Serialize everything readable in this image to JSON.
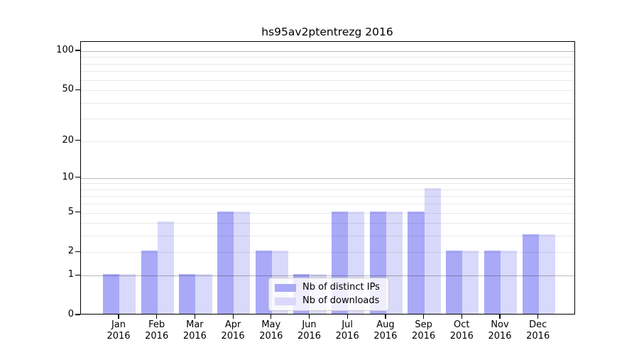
{
  "chart_data": {
    "type": "bar",
    "title": "hs95av2ptentrezg 2016",
    "categories": [
      "Jan 2016",
      "Feb 2016",
      "Mar 2016",
      "Apr 2016",
      "May 2016",
      "Jun 2016",
      "Jul 2016",
      "Aug 2016",
      "Sep 2016",
      "Oct 2016",
      "Nov 2016",
      "Dec 2016"
    ],
    "series": [
      {
        "name": "Nb of distinct IPs",
        "color": "#a9a9f8",
        "values": [
          1,
          2,
          1,
          5,
          2,
          1,
          5,
          5,
          5,
          2,
          2,
          3
        ]
      },
      {
        "name": "Nb of downloads",
        "color": "#d9d9fb",
        "values": [
          1,
          4,
          1,
          5,
          2,
          1,
          5,
          5,
          8,
          2,
          2,
          3
        ]
      }
    ],
    "y_scale": "log10(1+v)",
    "ylim": [
      0,
      117
    ],
    "y_tick_values": [
      0,
      1,
      2,
      5,
      10,
      20,
      50,
      100
    ],
    "grid_major_values": [
      1,
      10,
      100
    ],
    "grid_minor_values": [
      2,
      3,
      4,
      5,
      6,
      7,
      8,
      9,
      20,
      30,
      40,
      50,
      60,
      70,
      80,
      90
    ],
    "legend": {
      "position": "lower-center-inside"
    },
    "colors": {
      "bar_distinct_ips": "#a9a9f8",
      "bar_downloads": "#d9d9fb",
      "grid_major": "#b8b8b8",
      "grid_minor": "#e9e9e9",
      "spine": "#000000",
      "text": "#000000"
    },
    "grid": "on",
    "grid_above_bars": true
  }
}
